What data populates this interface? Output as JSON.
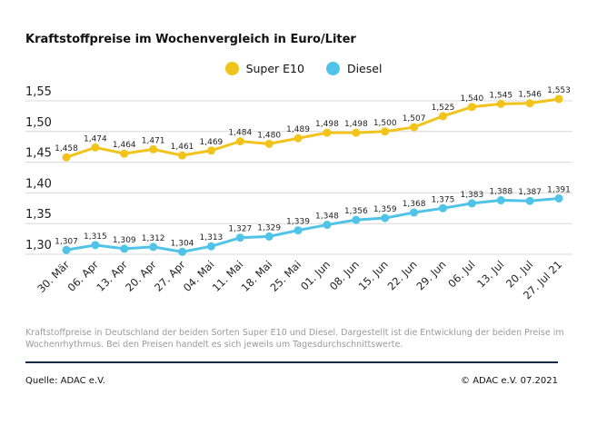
{
  "chart_data": {
    "type": "line",
    "title": "Kraftstoffpreise im Wochenvergleich in Euro/Liter",
    "categories": [
      "30. Mär",
      "06. Apr",
      "13. Apr",
      "20. Apr",
      "27. Apr",
      "04. Mai",
      "11. Mai",
      "18. Mai",
      "25. Mai",
      "01. Jun",
      "08. Jun",
      "15. Jun",
      "22. Jun",
      "29. Jun",
      "06. Jul",
      "13. Jul",
      "20. Jul",
      "27. Jul 21"
    ],
    "series": [
      {
        "name": "Super E10",
        "color": "#f2c31a",
        "values": [
          1.458,
          1.474,
          1.464,
          1.471,
          1.461,
          1.469,
          1.484,
          1.48,
          1.489,
          1.498,
          1.498,
          1.5,
          1.507,
          1.525,
          1.54,
          1.545,
          1.546,
          1.553
        ],
        "labels": [
          "1,458",
          "1,474",
          "1,464",
          "1,471",
          "1,461",
          "1,469",
          "1,484",
          "1,480",
          "1,489",
          "1,498",
          "1,498",
          "1,500",
          "1,507",
          "1,525",
          "1,540",
          "1,545",
          "1,546",
          "1,553"
        ]
      },
      {
        "name": "Diesel",
        "color": "#4fc3e8",
        "values": [
          1.307,
          1.315,
          1.309,
          1.312,
          1.304,
          1.313,
          1.327,
          1.329,
          1.339,
          1.348,
          1.356,
          1.359,
          1.368,
          1.375,
          1.383,
          1.388,
          1.387,
          1.391
        ],
        "labels": [
          "1,307",
          "1,315",
          "1,309",
          "1,312",
          "1,304",
          "1,313",
          "1,327",
          "1,329",
          "1,339",
          "1,348",
          "1,356",
          "1,359",
          "1,368",
          "1,375",
          "1,383",
          "1,388",
          "1,387",
          "1,391"
        ]
      }
    ],
    "yticks": [
      "1,30",
      "1,35",
      "1,40",
      "1,45",
      "1,50",
      "1,55"
    ],
    "ytick_values": [
      1.3,
      1.35,
      1.4,
      1.45,
      1.5,
      1.55
    ],
    "ylim": [
      1.3,
      1.55
    ],
    "grid": true,
    "legend_position": "top-center"
  },
  "description": "Kraftstoffpreise in Deutschland der beiden Sorten Super E10 und Diesel. Dargestellt ist die Entwicklung der beiden Preise im Wochenrhythmus. Bei den Preisen handelt es sich jeweils um Tagesdurchschnittswerte.",
  "source": "Quelle: ADAC e.V.",
  "copyright": "© ADAC e.V. 07.2021"
}
